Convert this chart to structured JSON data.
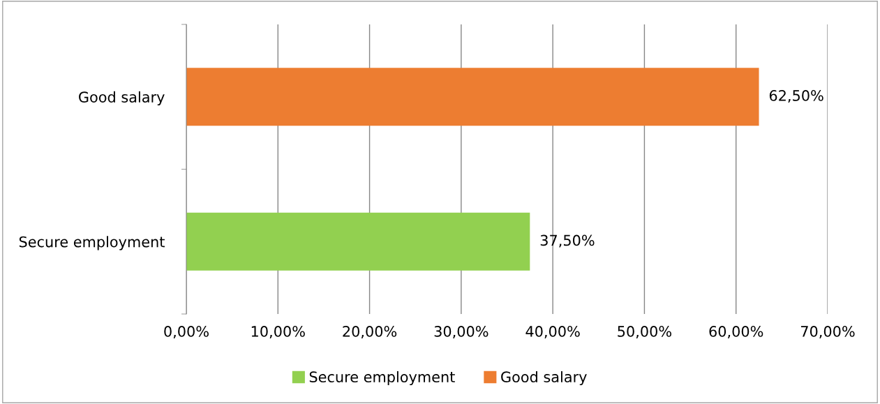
{
  "chart_data": {
    "type": "bar",
    "orientation": "horizontal",
    "categories": [
      "Good salary",
      "Secure employment"
    ],
    "series": [
      {
        "name": "Secure employment",
        "color": "#92d050",
        "values": [
          null,
          37.5
        ],
        "value_labels": [
          null,
          "37,50%"
        ]
      },
      {
        "name": "Good salary",
        "color": "#ed7d31",
        "values": [
          62.5,
          null
        ],
        "value_labels": [
          "62,50%",
          null
        ]
      }
    ],
    "xlim": [
      0,
      70
    ],
    "xticks": [
      {
        "value": 0,
        "label": "0,00%"
      },
      {
        "value": 10,
        "label": "10,00%"
      },
      {
        "value": 20,
        "label": "20,00%"
      },
      {
        "value": 30,
        "label": "30,00%"
      },
      {
        "value": 40,
        "label": "40,00%"
      },
      {
        "value": 50,
        "label": "50,00%"
      },
      {
        "value": 60,
        "label": "60,00%"
      },
      {
        "value": 70,
        "label": "70,00%"
      }
    ],
    "grid": "x",
    "legend": "bottom"
  }
}
